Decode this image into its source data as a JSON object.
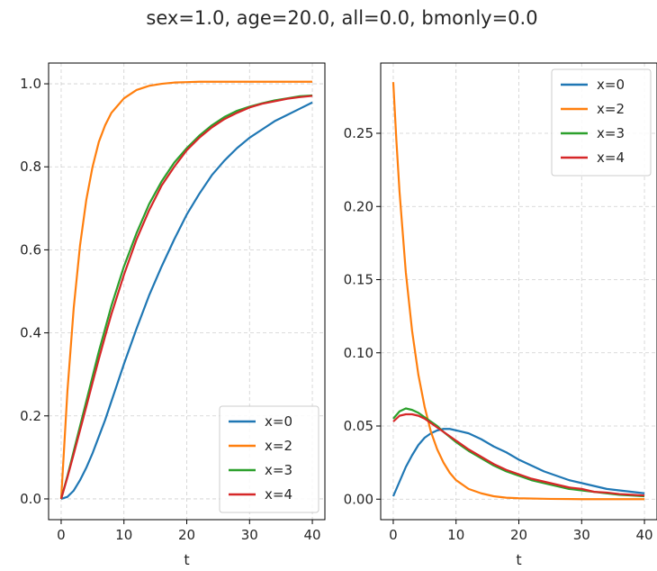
{
  "figure_title": "sex=1.0, age=20.0, all=0.0, bmonly=0.0",
  "colors": {
    "x=0": "#1f77b4",
    "x=2": "#ff7f0e",
    "x=3": "#2ca02c",
    "x=4": "#d62728",
    "grid": "#b0b0b0"
  },
  "chart_data": [
    {
      "type": "line",
      "xlabel": "t",
      "ylabel": "",
      "xlim": [
        -2,
        42
      ],
      "ylim": [
        -0.05,
        1.05
      ],
      "xticks": [
        0,
        10,
        20,
        30,
        40
      ],
      "xtick_labels": [
        "0",
        "10",
        "20",
        "30",
        "40"
      ],
      "yticks": [
        0.0,
        0.2,
        0.4,
        0.6,
        0.8,
        1.0
      ],
      "ytick_labels": [
        "0.0",
        "0.2",
        "0.4",
        "0.6",
        "0.8",
        "1.0"
      ],
      "grid": true,
      "legend_position": "lower-right",
      "series": [
        {
          "name": "x=0",
          "x": [
            0,
            1,
            2,
            3,
            4,
            5,
            6,
            7,
            8,
            10,
            12,
            14,
            16,
            18,
            20,
            22,
            24,
            26,
            28,
            30,
            32,
            34,
            36,
            38,
            40
          ],
          "values": [
            0,
            0.005,
            0.02,
            0.045,
            0.075,
            0.11,
            0.15,
            0.19,
            0.235,
            0.325,
            0.41,
            0.49,
            0.56,
            0.625,
            0.685,
            0.735,
            0.78,
            0.815,
            0.845,
            0.87,
            0.89,
            0.91,
            0.925,
            0.94,
            0.955
          ]
        },
        {
          "name": "x=2",
          "x": [
            0,
            1,
            2,
            3,
            4,
            5,
            6,
            7,
            8,
            10,
            12,
            14,
            16,
            18,
            20,
            22,
            24,
            26,
            28,
            30,
            32,
            34,
            36,
            38,
            40
          ],
          "values": [
            0,
            0.26,
            0.46,
            0.61,
            0.72,
            0.8,
            0.86,
            0.9,
            0.93,
            0.965,
            0.985,
            0.995,
            1.0,
            1.003,
            1.004,
            1.005,
            1.005,
            1.005,
            1.005,
            1.005,
            1.005,
            1.005,
            1.005,
            1.005,
            1.005
          ]
        },
        {
          "name": "x=3",
          "x": [
            0,
            1,
            2,
            3,
            4,
            5,
            6,
            7,
            8,
            10,
            12,
            14,
            16,
            18,
            20,
            22,
            24,
            26,
            28,
            30,
            32,
            34,
            36,
            38,
            40
          ],
          "values": [
            0,
            0.055,
            0.115,
            0.175,
            0.235,
            0.295,
            0.355,
            0.41,
            0.465,
            0.56,
            0.64,
            0.71,
            0.765,
            0.81,
            0.845,
            0.875,
            0.9,
            0.92,
            0.935,
            0.945,
            0.953,
            0.96,
            0.965,
            0.97,
            0.972
          ]
        },
        {
          "name": "x=4",
          "x": [
            0,
            1,
            2,
            3,
            4,
            5,
            6,
            7,
            8,
            10,
            12,
            14,
            16,
            18,
            20,
            22,
            24,
            26,
            28,
            30,
            32,
            34,
            36,
            38,
            40
          ],
          "values": [
            0,
            0.052,
            0.108,
            0.165,
            0.222,
            0.28,
            0.337,
            0.392,
            0.445,
            0.54,
            0.625,
            0.695,
            0.755,
            0.8,
            0.84,
            0.87,
            0.895,
            0.915,
            0.93,
            0.943,
            0.952,
            0.958,
            0.964,
            0.968,
            0.971
          ]
        }
      ]
    },
    {
      "type": "line",
      "xlabel": "t",
      "ylabel": "",
      "xlim": [
        -2,
        42
      ],
      "ylim": [
        -0.014,
        0.298
      ],
      "xticks": [
        0,
        10,
        20,
        30,
        40
      ],
      "xtick_labels": [
        "0",
        "10",
        "20",
        "30",
        "40"
      ],
      "yticks": [
        0.0,
        0.05,
        0.1,
        0.15,
        0.2,
        0.25
      ],
      "ytick_labels": [
        "0.00",
        "0.05",
        "0.10",
        "0.15",
        "0.20",
        "0.25"
      ],
      "grid": true,
      "legend_position": "upper-right",
      "series": [
        {
          "name": "x=0",
          "x": [
            0,
            1,
            2,
            3,
            4,
            5,
            6,
            7,
            8,
            9,
            10,
            12,
            14,
            16,
            18,
            20,
            22,
            24,
            26,
            28,
            30,
            32,
            34,
            36,
            38,
            40
          ],
          "values": [
            0.002,
            0.012,
            0.022,
            0.03,
            0.037,
            0.042,
            0.045,
            0.047,
            0.048,
            0.048,
            0.047,
            0.045,
            0.041,
            0.036,
            0.032,
            0.027,
            0.023,
            0.019,
            0.016,
            0.013,
            0.011,
            0.009,
            0.007,
            0.006,
            0.005,
            0.004
          ]
        },
        {
          "name": "x=2",
          "x": [
            0,
            0.5,
            1,
            2,
            3,
            4,
            5,
            6,
            7,
            8,
            9,
            10,
            12,
            14,
            16,
            18,
            20,
            25,
            30,
            35,
            40
          ],
          "values": [
            0.285,
            0.245,
            0.21,
            0.155,
            0.115,
            0.085,
            0.063,
            0.046,
            0.034,
            0.025,
            0.018,
            0.013,
            0.007,
            0.004,
            0.002,
            0.001,
            0.0006,
            0.0002,
            0,
            0,
            0
          ]
        },
        {
          "name": "x=3",
          "x": [
            0,
            1,
            2,
            3,
            4,
            5,
            6,
            7,
            8,
            10,
            12,
            14,
            16,
            18,
            20,
            22,
            24,
            26,
            28,
            30,
            32,
            34,
            36,
            38,
            40
          ],
          "values": [
            0.055,
            0.06,
            0.062,
            0.061,
            0.059,
            0.056,
            0.053,
            0.05,
            0.046,
            0.039,
            0.033,
            0.028,
            0.023,
            0.019,
            0.016,
            0.013,
            0.011,
            0.009,
            0.007,
            0.006,
            0.005,
            0.004,
            0.003,
            0.0025,
            0.002
          ]
        },
        {
          "name": "x=4",
          "x": [
            0,
            1,
            2,
            3,
            4,
            5,
            6,
            7,
            8,
            10,
            12,
            14,
            16,
            18,
            20,
            22,
            24,
            26,
            28,
            30,
            32,
            34,
            36,
            38,
            40
          ],
          "values": [
            0.053,
            0.057,
            0.058,
            0.058,
            0.057,
            0.055,
            0.052,
            0.049,
            0.046,
            0.04,
            0.034,
            0.029,
            0.024,
            0.02,
            0.017,
            0.014,
            0.012,
            0.01,
            0.008,
            0.007,
            0.005,
            0.0045,
            0.0035,
            0.003,
            0.0025
          ]
        }
      ]
    }
  ]
}
